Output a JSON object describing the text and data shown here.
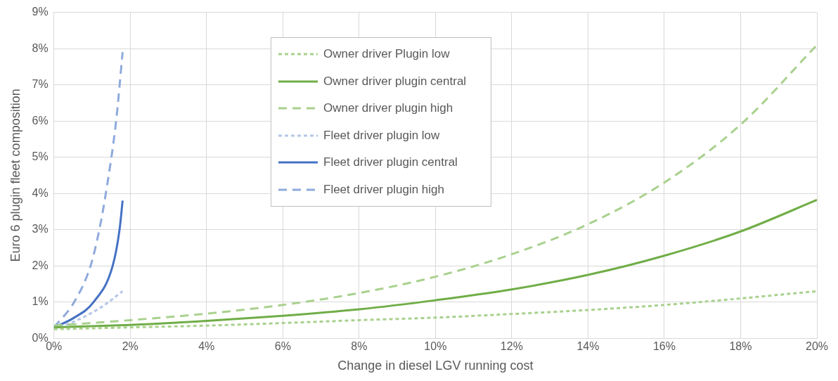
{
  "chart_data": {
    "type": "line",
    "xlabel": "Change in diesel LGV running cost",
    "ylabel": "Euro 6 plugin fleet composition",
    "xlim": [
      0,
      20
    ],
    "xticks": [
      {
        "value": 0,
        "label": "0%"
      },
      {
        "value": 2,
        "label": "2%"
      },
      {
        "value": 4,
        "label": "4%"
      },
      {
        "value": 6,
        "label": "6%"
      },
      {
        "value": 8,
        "label": "8%"
      },
      {
        "value": 10,
        "label": "10%"
      },
      {
        "value": 12,
        "label": "12%"
      },
      {
        "value": 14,
        "label": "14%"
      },
      {
        "value": 16,
        "label": "16%"
      },
      {
        "value": 18,
        "label": "18%"
      },
      {
        "value": 20,
        "label": "20%"
      }
    ],
    "ylim": [
      0,
      9
    ],
    "yticks": [
      {
        "value": 0,
        "label": "0%"
      },
      {
        "value": 1,
        "label": "1%"
      },
      {
        "value": 2,
        "label": "2%"
      },
      {
        "value": 3,
        "label": "3%"
      },
      {
        "value": 4,
        "label": "4%"
      },
      {
        "value": 5,
        "label": "5%"
      },
      {
        "value": 6,
        "label": "6%"
      },
      {
        "value": 7,
        "label": "7%"
      },
      {
        "value": 8,
        "label": "8%"
      },
      {
        "value": 9,
        "label": "9%"
      }
    ],
    "grid": true,
    "legend": "top",
    "marker": "none",
    "series": [
      {
        "name": "Owner driver Plugin low",
        "color": "#a9d18e",
        "line_style": "dotted",
        "x": [
          0,
          2,
          4,
          6,
          8,
          10,
          12,
          14,
          16,
          18,
          20
        ],
        "values": [
          0.25,
          0.3,
          0.35,
          0.42,
          0.5,
          0.57,
          0.67,
          0.78,
          0.92,
          1.1,
          1.3
        ]
      },
      {
        "name": "Owner driver plugin central",
        "color": "#70ad47",
        "line_style": "solid",
        "x": [
          0,
          2,
          4,
          6,
          8,
          10,
          12,
          14,
          16,
          18,
          20
        ],
        "values": [
          0.3,
          0.37,
          0.48,
          0.62,
          0.8,
          1.05,
          1.35,
          1.75,
          2.28,
          2.95,
          3.82
        ]
      },
      {
        "name": "Owner driver plugin high",
        "color": "#a9d18e",
        "line_style": "dashed",
        "x": [
          0,
          2,
          4,
          6,
          8,
          10,
          12,
          14,
          16,
          18,
          20
        ],
        "values": [
          0.35,
          0.5,
          0.68,
          0.92,
          1.25,
          1.7,
          2.32,
          3.15,
          4.3,
          5.9,
          8.1
        ]
      },
      {
        "name": "Fleet driver plugin low",
        "color": "#b4c7e7",
        "line_style": "dotted",
        "x": [
          0,
          0.5,
          0.9,
          1.3,
          1.8
        ],
        "values": [
          0.25,
          0.45,
          0.65,
          0.9,
          1.3
        ]
      },
      {
        "name": "Fleet driver plugin central",
        "color": "#4472c4",
        "line_style": "solid",
        "x": [
          0,
          0.5,
          1.04,
          1.54,
          1.72,
          1.8
        ],
        "values": [
          0.3,
          0.55,
          1,
          2,
          3,
          3.8
        ]
      },
      {
        "name": "Fleet driver plugin high",
        "color": "#8faadc",
        "line_style": "dashed",
        "x": [
          0,
          0.53,
          0.96,
          1.19,
          1.36,
          1.63,
          1.8
        ],
        "values": [
          0.3,
          1,
          2,
          3,
          4,
          6,
          7.9
        ]
      }
    ]
  }
}
